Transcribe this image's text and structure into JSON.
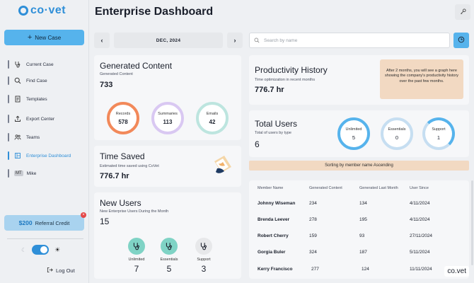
{
  "brand": {
    "name": "co·vet",
    "accent": "#2f8fd8"
  },
  "sidebar": {
    "new_case": "New Case",
    "items": [
      {
        "label": "Current Case",
        "icon": "stethoscope-icon"
      },
      {
        "label": "Find Case",
        "icon": "search-icon"
      },
      {
        "label": "Templates",
        "icon": "document-icon"
      },
      {
        "label": "Export Center",
        "icon": "export-icon"
      },
      {
        "label": "Teams",
        "icon": "people-icon"
      },
      {
        "label": "Enterprise Dashboard",
        "icon": "dashboard-icon",
        "active": true
      },
      {
        "label": "Mike",
        "icon": "avatar",
        "initials": "MT"
      }
    ],
    "referral": {
      "amount": "$200",
      "label": "Referral Credit"
    },
    "logout": "Log Out"
  },
  "header": {
    "title": "Enterprise Dashboard"
  },
  "date_nav": {
    "label": "DEC, 2024"
  },
  "search": {
    "placeholder": "Search by name"
  },
  "generated_content": {
    "title": "Generated Content",
    "subtitle": "Generated Content",
    "total": "733",
    "rings": [
      {
        "label": "Records",
        "value": "578"
      },
      {
        "label": "Summaries",
        "value": "113"
      },
      {
        "label": "Emails",
        "value": "42"
      }
    ]
  },
  "time_saved": {
    "title": "Time Saved",
    "subtitle": "Estimated time saved using CoVet",
    "value": "776.7 hr"
  },
  "new_users": {
    "title": "New Users",
    "subtitle": "New Enterprise Users During the Month",
    "total": "15",
    "items": [
      {
        "label": "Unlimited",
        "value": "7"
      },
      {
        "label": "Essentials",
        "value": "5"
      },
      {
        "label": "Support",
        "value": "3"
      }
    ]
  },
  "productivity": {
    "title": "Productivity History",
    "subtitle": "Time optimization in recent months",
    "value": "776.7 hr",
    "note": "After 2 months, you will see a graph here showing the company's productivity history over the past few months."
  },
  "total_users": {
    "title": "Total Users",
    "subtitle": "Total of users by type",
    "total": "6",
    "rings": [
      {
        "label": "Unlimited",
        "value": "5"
      },
      {
        "label": "Essentials",
        "value": "0"
      },
      {
        "label": "Support",
        "value": "1"
      }
    ]
  },
  "sort_label": "Sorting by member name Ascending",
  "table": {
    "columns": [
      "Member Name",
      "Generated Content",
      "Generated Last Month",
      "User Since"
    ],
    "rows": [
      [
        "Johnny Wiseman",
        "234",
        "134",
        "4/11/2024"
      ],
      [
        "Brenda Leever",
        "278",
        "195",
        "4/11/2024"
      ],
      [
        "Robert Cherry",
        "159",
        "93",
        "27/11/2024"
      ],
      [
        "Gorgia Buler",
        "324",
        "187",
        "5/11/2024"
      ],
      [
        "Kerry Francisco",
        "277",
        "124",
        "11/11/2024"
      ]
    ]
  },
  "watermark": "co.vet"
}
